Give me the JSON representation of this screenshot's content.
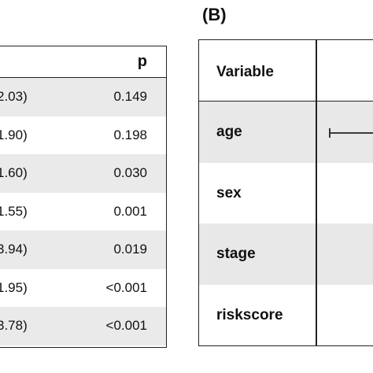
{
  "panel_a": {
    "header": {
      "p_label": "p"
    },
    "rows": [
      {
        "ci": "2.03)",
        "p": "0.149",
        "shaded": true
      },
      {
        "ci": "1.90)",
        "p": "0.198",
        "shaded": false
      },
      {
        "ci": "1.60)",
        "p": "0.030",
        "shaded": true
      },
      {
        "ci": "1.55)",
        "p": "0.001",
        "shaded": false
      },
      {
        "ci": "3.94)",
        "p": "0.019",
        "shaded": true
      },
      {
        "ci": "1.95)",
        "p": "<0.001",
        "shaded": false
      },
      {
        "ci": "3.78)",
        "p": "<0.001",
        "shaded": true
      }
    ]
  },
  "panel_b": {
    "label": "(B)",
    "header": {
      "variable_label": "Variable"
    },
    "rows": [
      {
        "name": "age",
        "shaded": true
      },
      {
        "name": "sex",
        "shaded": false
      },
      {
        "name": "stage",
        "shaded": true
      },
      {
        "name": "riskscore",
        "shaded": false
      }
    ]
  }
}
